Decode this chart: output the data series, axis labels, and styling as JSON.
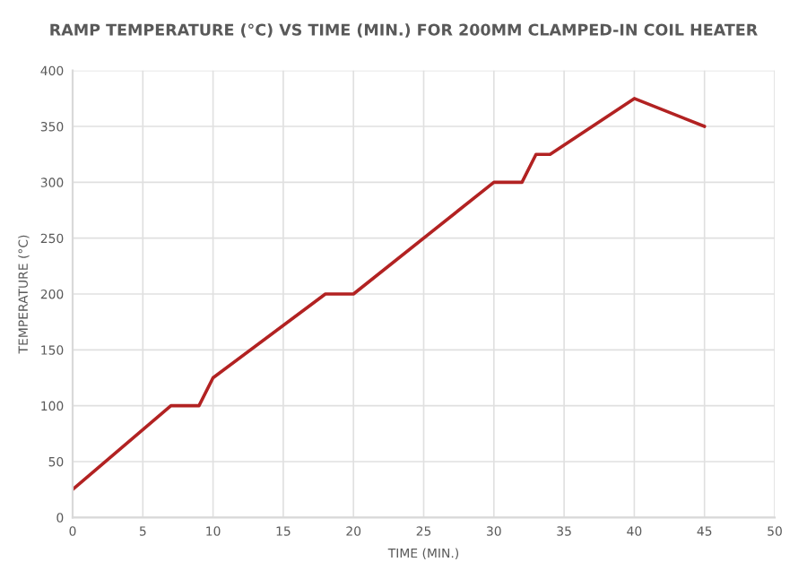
{
  "chart_data": {
    "type": "line",
    "title": "RAMP TEMPERATURE (°C) VS TIME (MIN.) FOR 200MM CLAMPED-IN COIL HEATER",
    "xlabel": "TIME (MIN.)",
    "ylabel": "TEMPERATURE (°C)",
    "x": [
      0,
      7,
      9,
      10,
      18,
      20,
      30,
      32,
      33,
      34,
      40,
      45
    ],
    "series": [
      {
        "color": "#b22222",
        "values": [
          25,
          100,
          100,
          125,
          200,
          200,
          300,
          300,
          325,
          325,
          375,
          350
        ]
      }
    ],
    "xlim": [
      0,
      50
    ],
    "xticks": [
      0,
      5,
      10,
      15,
      20,
      25,
      30,
      35,
      40,
      45,
      50
    ],
    "ylim": [
      0,
      400
    ],
    "yticks": [
      0,
      50,
      100,
      150,
      200,
      250,
      300,
      350,
      400
    ],
    "grid": true,
    "marker": "none",
    "line_style": "solid",
    "legend": false
  }
}
